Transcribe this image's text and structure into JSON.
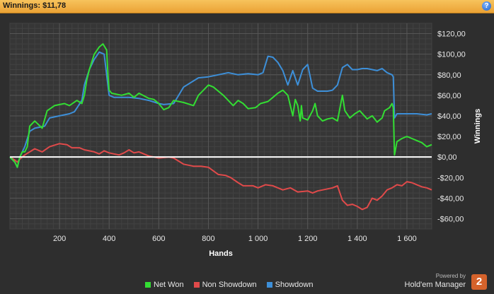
{
  "header": {
    "title": "Winnings: $11,78",
    "help_label": "?"
  },
  "branding": {
    "powered_by": "Powered by",
    "product": "Hold'em Manager",
    "logo_text": "2"
  },
  "chart_data": {
    "type": "line",
    "title": "",
    "xlabel": "Hands",
    "ylabel": "Winnings",
    "xlim": [
      0,
      1700
    ],
    "ylim": [
      -70,
      130
    ],
    "x_ticks": [
      200,
      400,
      600,
      800,
      1000,
      1200,
      1400,
      1600
    ],
    "x_tick_labels": [
      "200",
      "400",
      "600",
      "800",
      "1 000",
      "1 200",
      "1 400",
      "1 600"
    ],
    "y_ticks": [
      120,
      100,
      80,
      60,
      40,
      20,
      0,
      -20,
      -40,
      -60
    ],
    "y_tick_labels": [
      "$120,00",
      "$100,00",
      "$80,00",
      "$60,00",
      "$40,00",
      "$20,00",
      "$0,00",
      "-$20,00",
      "-$40,00",
      "-$60,00"
    ],
    "grid": true,
    "legend_position": "bottom-center",
    "series": [
      {
        "name": "Net Won",
        "color": "#33dd33",
        "points": [
          [
            0,
            0
          ],
          [
            20,
            -5
          ],
          [
            30,
            -10
          ],
          [
            40,
            0
          ],
          [
            50,
            5
          ],
          [
            60,
            5
          ],
          [
            70,
            10
          ],
          [
            80,
            30
          ],
          [
            100,
            35
          ],
          [
            130,
            28
          ],
          [
            150,
            45
          ],
          [
            180,
            50
          ],
          [
            220,
            52
          ],
          [
            240,
            50
          ],
          [
            270,
            55
          ],
          [
            290,
            52
          ],
          [
            300,
            60
          ],
          [
            310,
            75
          ],
          [
            320,
            85
          ],
          [
            340,
            100
          ],
          [
            360,
            107
          ],
          [
            375,
            110
          ],
          [
            390,
            104
          ],
          [
            395,
            80
          ],
          [
            400,
            65
          ],
          [
            410,
            62
          ],
          [
            450,
            60
          ],
          [
            480,
            62
          ],
          [
            500,
            58
          ],
          [
            520,
            62
          ],
          [
            560,
            57
          ],
          [
            580,
            56
          ],
          [
            600,
            52
          ],
          [
            620,
            46
          ],
          [
            640,
            48
          ],
          [
            660,
            55
          ],
          [
            700,
            53
          ],
          [
            740,
            50
          ],
          [
            760,
            60
          ],
          [
            780,
            65
          ],
          [
            800,
            70
          ],
          [
            820,
            68
          ],
          [
            860,
            60
          ],
          [
            880,
            55
          ],
          [
            900,
            50
          ],
          [
            920,
            55
          ],
          [
            940,
            52
          ],
          [
            960,
            47
          ],
          [
            990,
            48
          ],
          [
            1010,
            52
          ],
          [
            1040,
            54
          ],
          [
            1060,
            58
          ],
          [
            1080,
            62
          ],
          [
            1100,
            65
          ],
          [
            1120,
            60
          ],
          [
            1140,
            40
          ],
          [
            1150,
            56
          ],
          [
            1160,
            50
          ],
          [
            1170,
            35
          ],
          [
            1175,
            50
          ],
          [
            1180,
            38
          ],
          [
            1200,
            36
          ],
          [
            1220,
            45
          ],
          [
            1230,
            52
          ],
          [
            1240,
            40
          ],
          [
            1260,
            35
          ],
          [
            1280,
            37
          ],
          [
            1300,
            38
          ],
          [
            1320,
            35
          ],
          [
            1340,
            60
          ],
          [
            1350,
            45
          ],
          [
            1370,
            38
          ],
          [
            1390,
            42
          ],
          [
            1410,
            45
          ],
          [
            1440,
            37
          ],
          [
            1460,
            40
          ],
          [
            1480,
            34
          ],
          [
            1500,
            38
          ],
          [
            1510,
            45
          ],
          [
            1530,
            48
          ],
          [
            1540,
            52
          ],
          [
            1545,
            48
          ],
          [
            1550,
            2
          ],
          [
            1560,
            15
          ],
          [
            1580,
            18
          ],
          [
            1600,
            20
          ],
          [
            1620,
            18
          ],
          [
            1640,
            16
          ],
          [
            1660,
            14
          ],
          [
            1680,
            10
          ],
          [
            1700,
            12
          ]
        ]
      },
      {
        "name": "Non Showdown",
        "color": "#e04a4a",
        "points": [
          [
            0,
            0
          ],
          [
            20,
            -3
          ],
          [
            30,
            -5
          ],
          [
            40,
            -2
          ],
          [
            60,
            2
          ],
          [
            80,
            5
          ],
          [
            100,
            8
          ],
          [
            130,
            5
          ],
          [
            160,
            10
          ],
          [
            200,
            13
          ],
          [
            230,
            12
          ],
          [
            250,
            9
          ],
          [
            280,
            9
          ],
          [
            300,
            7
          ],
          [
            320,
            6
          ],
          [
            340,
            5
          ],
          [
            360,
            3
          ],
          [
            380,
            6
          ],
          [
            400,
            4
          ],
          [
            420,
            3
          ],
          [
            440,
            2
          ],
          [
            460,
            4
          ],
          [
            480,
            7
          ],
          [
            500,
            4
          ],
          [
            520,
            5
          ],
          [
            540,
            3
          ],
          [
            560,
            1
          ],
          [
            600,
            -1
          ],
          [
            640,
            0
          ],
          [
            660,
            -1
          ],
          [
            700,
            -7
          ],
          [
            740,
            -9
          ],
          [
            770,
            -9
          ],
          [
            800,
            -10
          ],
          [
            840,
            -17
          ],
          [
            870,
            -18
          ],
          [
            890,
            -20
          ],
          [
            920,
            -25
          ],
          [
            940,
            -28
          ],
          [
            980,
            -28
          ],
          [
            1000,
            -30
          ],
          [
            1030,
            -27
          ],
          [
            1060,
            -28
          ],
          [
            1100,
            -32
          ],
          [
            1130,
            -30
          ],
          [
            1160,
            -34
          ],
          [
            1200,
            -33
          ],
          [
            1220,
            -35
          ],
          [
            1240,
            -33
          ],
          [
            1280,
            -31
          ],
          [
            1300,
            -30
          ],
          [
            1320,
            -28
          ],
          [
            1340,
            -42
          ],
          [
            1360,
            -47
          ],
          [
            1380,
            -46
          ],
          [
            1400,
            -48
          ],
          [
            1420,
            -51
          ],
          [
            1440,
            -49
          ],
          [
            1460,
            -40
          ],
          [
            1480,
            -42
          ],
          [
            1500,
            -38
          ],
          [
            1520,
            -32
          ],
          [
            1540,
            -30
          ],
          [
            1560,
            -27
          ],
          [
            1580,
            -28
          ],
          [
            1600,
            -24
          ],
          [
            1620,
            -25
          ],
          [
            1640,
            -27
          ],
          [
            1660,
            -29
          ],
          [
            1680,
            -30
          ],
          [
            1700,
            -32
          ]
        ]
      },
      {
        "name": "Showdown",
        "color": "#3d8fd8",
        "points": [
          [
            0,
            0
          ],
          [
            20,
            -5
          ],
          [
            30,
            -10
          ],
          [
            40,
            0
          ],
          [
            60,
            10
          ],
          [
            80,
            25
          ],
          [
            100,
            28
          ],
          [
            140,
            30
          ],
          [
            160,
            38
          ],
          [
            200,
            40
          ],
          [
            240,
            42
          ],
          [
            260,
            44
          ],
          [
            290,
            55
          ],
          [
            300,
            70
          ],
          [
            320,
            85
          ],
          [
            340,
            95
          ],
          [
            360,
            102
          ],
          [
            380,
            100
          ],
          [
            400,
            60
          ],
          [
            420,
            58
          ],
          [
            480,
            58
          ],
          [
            520,
            57
          ],
          [
            560,
            55
          ],
          [
            600,
            52
          ],
          [
            620,
            51
          ],
          [
            660,
            52
          ],
          [
            700,
            68
          ],
          [
            760,
            77
          ],
          [
            800,
            78
          ],
          [
            840,
            80
          ],
          [
            880,
            82
          ],
          [
            920,
            80
          ],
          [
            960,
            81
          ],
          [
            1000,
            80
          ],
          [
            1020,
            82
          ],
          [
            1040,
            98
          ],
          [
            1060,
            97
          ],
          [
            1080,
            92
          ],
          [
            1100,
            84
          ],
          [
            1120,
            70
          ],
          [
            1140,
            84
          ],
          [
            1160,
            70
          ],
          [
            1180,
            85
          ],
          [
            1200,
            90
          ],
          [
            1220,
            67
          ],
          [
            1240,
            64
          ],
          [
            1280,
            64
          ],
          [
            1300,
            65
          ],
          [
            1320,
            70
          ],
          [
            1340,
            87
          ],
          [
            1360,
            90
          ],
          [
            1380,
            85
          ],
          [
            1400,
            85
          ],
          [
            1420,
            86
          ],
          [
            1440,
            86
          ],
          [
            1460,
            85
          ],
          [
            1480,
            84
          ],
          [
            1500,
            86
          ],
          [
            1520,
            82
          ],
          [
            1540,
            80
          ],
          [
            1545,
            78
          ],
          [
            1550,
            38
          ],
          [
            1560,
            42
          ],
          [
            1600,
            42
          ],
          [
            1640,
            42
          ],
          [
            1680,
            41
          ],
          [
            1700,
            42
          ]
        ]
      }
    ]
  }
}
